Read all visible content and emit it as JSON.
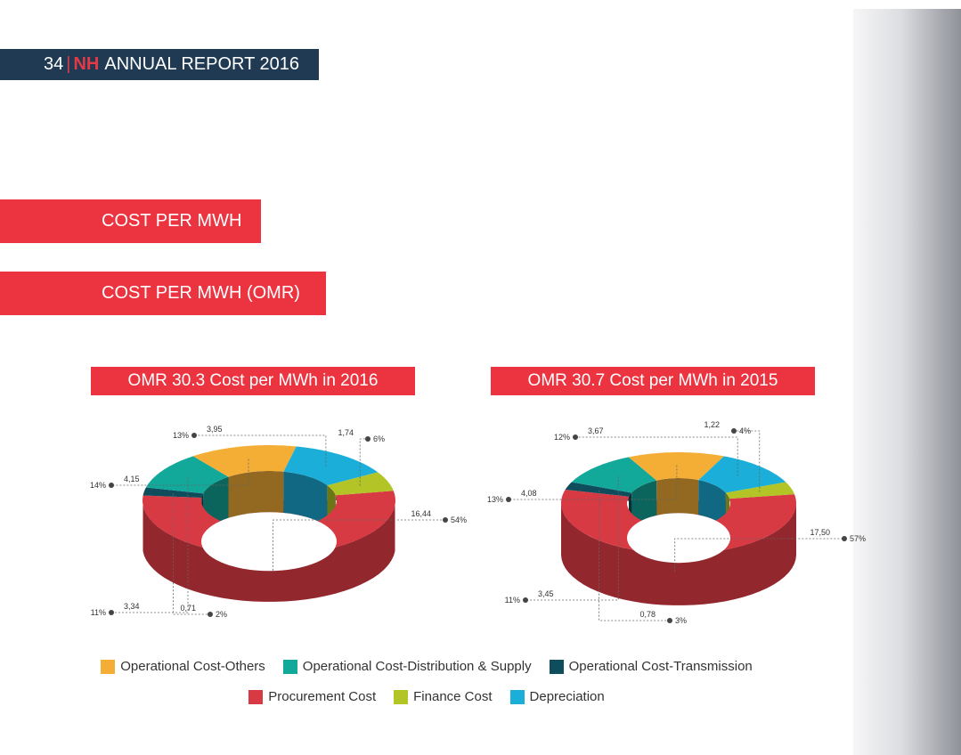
{
  "header": {
    "page_number": "34",
    "separator": "|",
    "brand": "NH",
    "report": "ANNUAL REPORT 2016"
  },
  "bands": {
    "cost_per_mwh": "COST PER MWH",
    "cost_per_mwh_omr": "COST PER MWH (OMR)"
  },
  "colors": {
    "operational_others": "#f5ae35",
    "operational_distribution": "#12a89a",
    "operational_transmission": "#0f4c5c",
    "procurement": "#d83a44",
    "finance": "#b3c427",
    "depreciation": "#1aaed9"
  },
  "chart_data": [
    {
      "type": "pie",
      "title": "OMR 30.3 Cost per MWh in 2016",
      "slices": [
        {
          "name": "Procurement Cost",
          "value": 16.44,
          "value_label": "16,44",
          "percent_label": "54%"
        },
        {
          "name": "Operational Cost-Transmission",
          "value": 0.71,
          "value_label": "0,71",
          "percent_label": "2%"
        },
        {
          "name": "Operational Cost-Distribution & Supply",
          "value": 3.34,
          "value_label": "3,34",
          "percent_label": "11%"
        },
        {
          "name": "Operational Cost-Others",
          "value": 4.15,
          "value_label": "4,15",
          "percent_label": "14%"
        },
        {
          "name": "Depreciation",
          "value": 3.95,
          "value_label": "3,95",
          "percent_label": "13%"
        },
        {
          "name": "Finance Cost",
          "value": 1.74,
          "value_label": "1,74",
          "percent_label": "6%"
        }
      ]
    },
    {
      "type": "pie",
      "title": "OMR 30.7 Cost per MWh in 2015",
      "slices": [
        {
          "name": "Procurement Cost",
          "value": 17.5,
          "value_label": "17,50",
          "percent_label": "57%"
        },
        {
          "name": "Operational Cost-Transmission",
          "value": 0.78,
          "value_label": "0,78",
          "percent_label": "3%"
        },
        {
          "name": "Operational Cost-Distribution & Supply",
          "value": 3.45,
          "value_label": "3,45",
          "percent_label": "11%"
        },
        {
          "name": "Operational Cost-Others",
          "value": 4.08,
          "value_label": "4,08",
          "percent_label": "13%"
        },
        {
          "name": "Depreciation",
          "value": 3.67,
          "value_label": "3,67",
          "percent_label": "12%"
        },
        {
          "name": "Finance Cost",
          "value": 1.22,
          "value_label": "1,22",
          "percent_label": "4%"
        }
      ]
    }
  ],
  "legend": {
    "row1": [
      {
        "label": "Operational Cost-Others",
        "color": "#f5ae35"
      },
      {
        "label": "Operational Cost-Distribution & Supply",
        "color": "#12a89a"
      },
      {
        "label": "Operational Cost-Transmission",
        "color": "#0f4c5c"
      }
    ],
    "row2": [
      {
        "label": "Procurement Cost",
        "color": "#d83a44"
      },
      {
        "label": "Finance Cost",
        "color": "#b3c427"
      },
      {
        "label": "Depreciation",
        "color": "#1aaed9"
      }
    ]
  }
}
